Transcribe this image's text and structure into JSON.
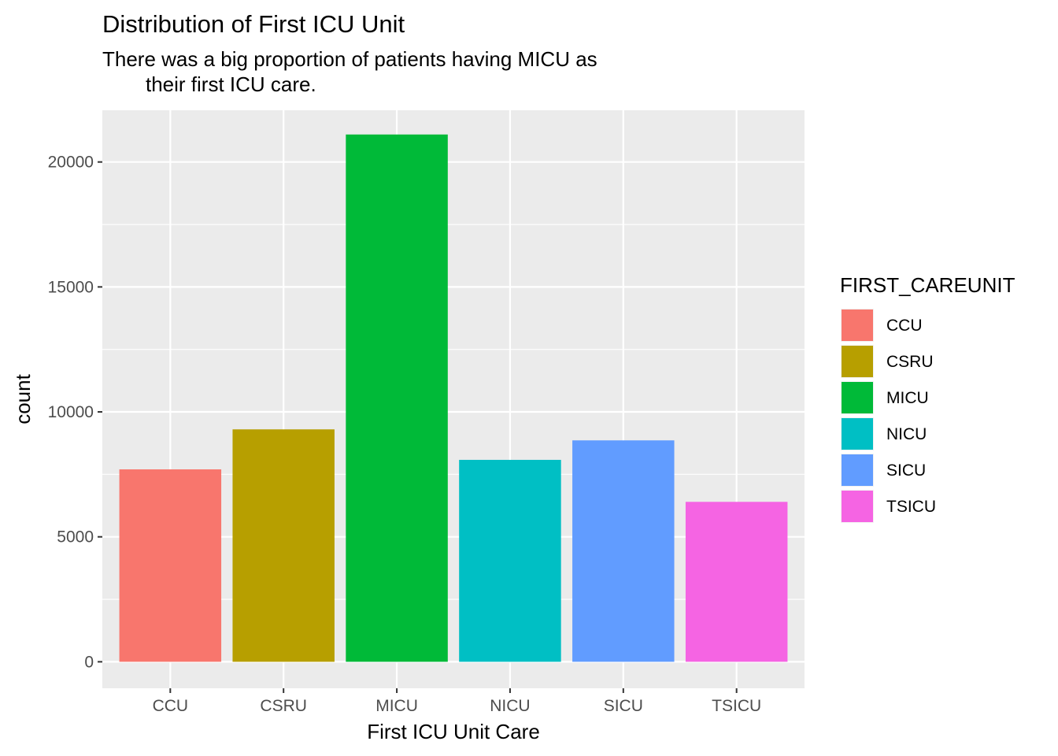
{
  "chart_data": {
    "type": "bar",
    "title": "Distribution of First ICU Unit",
    "subtitle_lines": [
      "There was a big proportion of patients having MICU as",
      "their first ICU care."
    ],
    "xlabel": "First ICU Unit Care",
    "ylabel": "count",
    "categories": [
      "CCU",
      "CSRU",
      "MICU",
      "NICU",
      "SICU",
      "TSICU"
    ],
    "values": [
      7700,
      9300,
      21100,
      8080,
      8860,
      6400
    ],
    "colors": [
      "#F8766D",
      "#B79F00",
      "#00BA38",
      "#00BFC4",
      "#619CFF",
      "#F564E3"
    ],
    "ylim": [
      -1060,
      22070
    ],
    "yticks": [
      0,
      5000,
      10000,
      15000,
      20000
    ],
    "ytick_labels": [
      "0",
      "5000",
      "10000",
      "15000",
      "20000"
    ],
    "grid": true,
    "legend": {
      "title": "FIRST_CAREUNIT",
      "position": "right",
      "items": [
        "CCU",
        "CSRU",
        "MICU",
        "NICU",
        "SICU",
        "TSICU"
      ]
    },
    "panel_background": "#EBEBEB",
    "grid_color": "#FFFFFF"
  }
}
